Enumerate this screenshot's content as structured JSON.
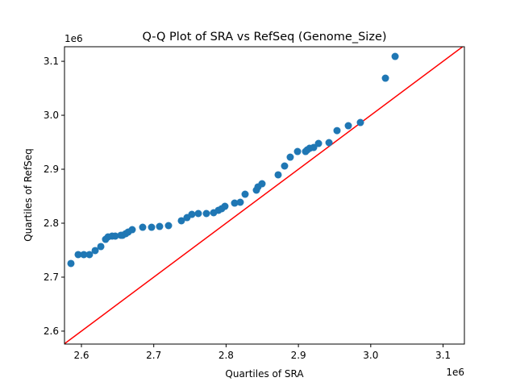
{
  "chart_data": {
    "type": "scatter",
    "title": "Q-Q Plot of SRA vs RefSeq (Genome_Size)",
    "xlabel": "Quartiles of SRA",
    "ylabel": "Quartiles of RefSeq",
    "x_offset_label": "1e6",
    "y_offset_label": "1e6",
    "xlim": [
      2.5766,
      3.1295
    ],
    "ylim": [
      2.576,
      3.127
    ],
    "x_ticks": [
      2.6,
      2.7,
      2.8,
      2.9,
      3.0,
      3.1
    ],
    "x_tick_labels": [
      "2.6",
      "2.7",
      "2.8",
      "2.9",
      "3.0",
      "3.1"
    ],
    "y_ticks": [
      2.6,
      2.7,
      2.8,
      2.9,
      3.0,
      3.1
    ],
    "y_tick_labels": [
      "2.6",
      "2.7",
      "2.8",
      "2.9",
      "3.0",
      "3.1"
    ],
    "grid": false,
    "point_color": "#1f77b4",
    "reference_line": {
      "type": "y=x",
      "color": "#ff0000"
    },
    "points": [
      [
        2.5855,
        2.7254
      ],
      [
        2.5955,
        2.7418
      ],
      [
        2.6033,
        2.7418
      ],
      [
        2.6111,
        2.7418
      ],
      [
        2.619,
        2.7493
      ],
      [
        2.6268,
        2.7567
      ],
      [
        2.6334,
        2.7701
      ],
      [
        2.6368,
        2.7746
      ],
      [
        2.6424,
        2.7761
      ],
      [
        2.6468,
        2.7761
      ],
      [
        2.6546,
        2.7776
      ],
      [
        2.6569,
        2.7776
      ],
      [
        2.6613,
        2.7806
      ],
      [
        2.6647,
        2.7836
      ],
      [
        2.6702,
        2.788
      ],
      [
        2.6847,
        2.7925
      ],
      [
        2.697,
        2.7925
      ],
      [
        2.7081,
        2.794
      ],
      [
        2.7204,
        2.7955
      ],
      [
        2.7382,
        2.8045
      ],
      [
        2.746,
        2.8104
      ],
      [
        2.7527,
        2.8164
      ],
      [
        2.7616,
        2.8179
      ],
      [
        2.7728,
        2.8179
      ],
      [
        2.7828,
        2.8194
      ],
      [
        2.7895,
        2.8239
      ],
      [
        2.794,
        2.8269
      ],
      [
        2.7984,
        2.8313
      ],
      [
        2.8118,
        2.8373
      ],
      [
        2.8196,
        2.8388
      ],
      [
        2.8263,
        2.8537
      ],
      [
        2.8419,
        2.8612
      ],
      [
        2.8441,
        2.8672
      ],
      [
        2.8497,
        2.8731
      ],
      [
        2.872,
        2.8896
      ],
      [
        2.8809,
        2.906
      ],
      [
        2.8887,
        2.9224
      ],
      [
        2.8988,
        2.9328
      ],
      [
        2.9099,
        2.9328
      ],
      [
        2.9122,
        2.9358
      ],
      [
        2.9155,
        2.9388
      ],
      [
        2.9211,
        2.9403
      ],
      [
        2.9278,
        2.9478
      ],
      [
        2.9423,
        2.9493
      ],
      [
        2.9534,
        2.9716
      ],
      [
        2.969,
        2.9806
      ],
      [
        2.9857,
        2.9866
      ],
      [
        3.0203,
        3.0687
      ],
      [
        3.0337,
        3.109
      ]
    ]
  }
}
